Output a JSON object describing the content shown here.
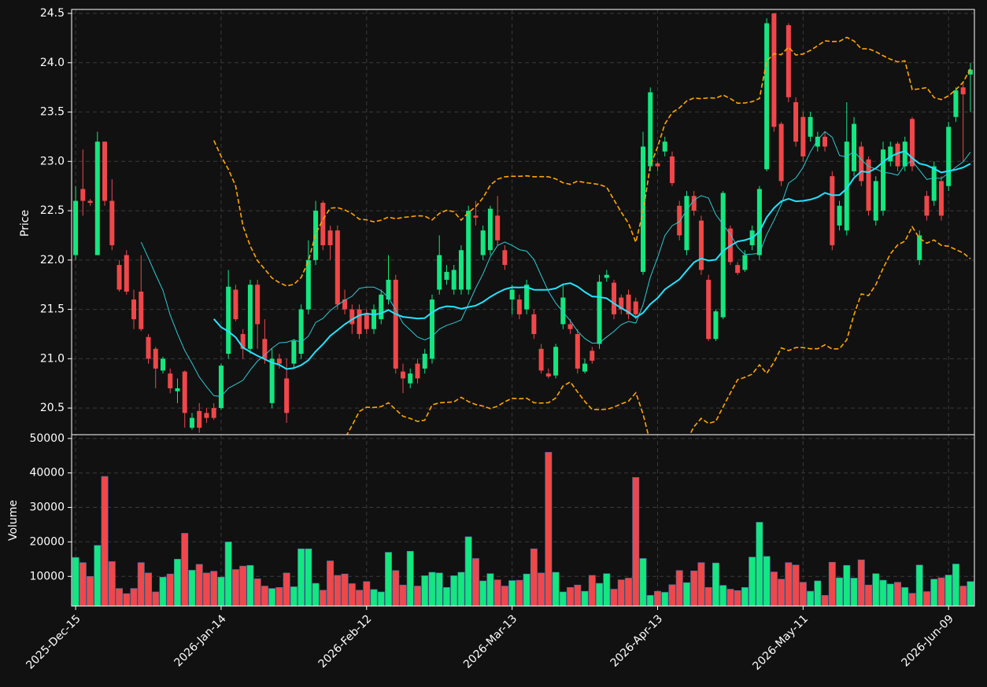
{
  "chart_data": {
    "type": "candlestick",
    "ylabel": "Price",
    "volume_label": "Volume",
    "ylim": [
      20.23,
      24.54
    ],
    "yticks": [
      20.5,
      {
        "value": 21,
        "label": "21.0"
      },
      21.5,
      {
        "value": 22,
        "label": "22.0"
      },
      22.5,
      {
        "value": 23,
        "label": "23.0"
      },
      23.5,
      {
        "value": 24,
        "label": "24.0"
      },
      24.5
    ],
    "volume_ylim": [
      1400,
      51100
    ],
    "volume_yticks": [
      10000,
      20000,
      30000,
      40000,
      50000
    ],
    "xticks": [
      {
        "value": 0,
        "label": "2025-Dec-15"
      },
      {
        "value": 20,
        "label": "2026-Jan-14"
      },
      {
        "value": 40,
        "label": "2026-Feb-12"
      },
      {
        "value": 60,
        "label": "2026-Mar-13"
      },
      {
        "value": 80,
        "label": "2026-Apr-13"
      },
      {
        "value": 100,
        "label": "2026-May-11"
      },
      {
        "value": 120,
        "label": "2026-Jun-09"
      }
    ],
    "grid": true,
    "colors": {
      "up": "#14e680",
      "down": "#f0474a"
    },
    "overlays": [
      {
        "kind": "sma",
        "window": 10,
        "color": "#2fc8d0",
        "width": 1
      },
      {
        "kind": "sma",
        "window": 20,
        "color": "#22e4ff",
        "width": 2
      },
      {
        "kind": "bollinger",
        "window": 20,
        "k": 2,
        "color": "#ffa500",
        "width": 1.6
      }
    ],
    "open": [
      22.05,
      22.72,
      22.6,
      22.05,
      23.2,
      22.6,
      21.95,
      22.05,
      21.6,
      21.68,
      21.22,
      21.1,
      20.88,
      20.85,
      20.67,
      20.87,
      20.3,
      20.47,
      20.45,
      20.5,
      20.5,
      21.05,
      21.7,
      21.25,
      21.1,
      21.75,
      21.2,
      20.55,
      21.0,
      20.8,
      20.95,
      21.05,
      21.5,
      22.0,
      22.58,
      22.3,
      22.3,
      21.6,
      21.5,
      21.5,
      21.45,
      21.3,
      21.4,
      21.6,
      21.8,
      20.87,
      20.75,
      20.95,
      20.9,
      21.0,
      21.7,
      21.8,
      21.7,
      21.7,
      21.7,
      22.45,
      22.05,
      22.1,
      22.45,
      22.1,
      21.6,
      21.6,
      21.5,
      21.45,
      21.1,
      20.85,
      20.83,
      21.35,
      21.35,
      21.25,
      20.87,
      21.08,
      21.15,
      21.82,
      21.77,
      21.62,
      21.65,
      21.58,
      21.88,
      22.95,
      22.98,
      23.1,
      23.05,
      22.55,
      22.1,
      22.65,
      22.4,
      21.8,
      21.2,
      21.42,
      22.32,
      21.95,
      21.9,
      22.15,
      22.05,
      22.92,
      24.5,
      23.38,
      24.38,
      23.6,
      23.45,
      23.25,
      23.15,
      23.25,
      22.85,
      22.35,
      22.3,
      22.9,
      23.15,
      23.02,
      22.4,
      22.5,
      23.0,
      23.18,
      22.95,
      23.43,
      22.0,
      22.65,
      22.6,
      22.8,
      22.75,
      23.45,
      23.75,
      23.88
    ],
    "high": [
      22.75,
      23.12,
      22.62,
      23.3,
      23.2,
      22.82,
      22.0,
      22.1,
      21.7,
      22.05,
      21.25,
      21.12,
      21.02,
      20.9,
      20.8,
      20.88,
      20.45,
      20.55,
      20.5,
      20.55,
      20.95,
      21.9,
      21.75,
      21.3,
      21.8,
      21.8,
      21.4,
      21.1,
      21.05,
      21.0,
      21.2,
      21.55,
      22.2,
      22.6,
      22.6,
      22.35,
      22.35,
      21.7,
      21.55,
      21.55,
      21.5,
      21.55,
      21.7,
      22.05,
      21.85,
      20.95,
      20.9,
      21.0,
      21.1,
      21.65,
      22.25,
      21.95,
      21.95,
      22.15,
      22.55,
      22.6,
      22.35,
      22.55,
      22.65,
      22.15,
      21.75,
      21.65,
      21.8,
      21.5,
      21.15,
      20.9,
      21.15,
      21.75,
      21.4,
      21.3,
      21.0,
      21.12,
      21.85,
      21.9,
      21.8,
      21.65,
      21.7,
      21.62,
      23.3,
      23.75,
      23.0,
      23.25,
      23.1,
      22.6,
      22.7,
      22.7,
      22.45,
      21.85,
      21.5,
      22.7,
      22.35,
      21.98,
      22.1,
      22.35,
      22.75,
      24.45,
      24.5,
      23.4,
      24.4,
      23.65,
      23.5,
      23.5,
      23.3,
      23.3,
      22.9,
      22.6,
      23.6,
      23.45,
      23.2,
      23.05,
      22.85,
      23.2,
      23.2,
      23.2,
      23.25,
      23.45,
      22.3,
      22.7,
      23.0,
      22.85,
      23.4,
      23.75,
      23.8,
      24.0
    ],
    "low": [
      22.0,
      22.45,
      22.55,
      22.05,
      22.55,
      22.1,
      21.68,
      21.65,
      21.3,
      21.28,
      20.95,
      20.7,
      20.85,
      20.65,
      20.55,
      20.3,
      20.28,
      20.25,
      20.35,
      20.38,
      20.48,
      21.0,
      21.38,
      21.0,
      21.05,
      21.1,
      20.95,
      20.5,
      20.9,
      20.35,
      20.9,
      21.0,
      21.45,
      21.95,
      22.1,
      22.0,
      21.5,
      21.45,
      21.25,
      21.2,
      21.25,
      21.25,
      21.35,
      21.55,
      20.85,
      20.65,
      20.7,
      20.75,
      20.85,
      20.95,
      21.65,
      21.75,
      21.65,
      21.65,
      21.65,
      22.35,
      22.0,
      22.05,
      22.15,
      21.9,
      21.45,
      21.4,
      21.45,
      21.2,
      20.85,
      20.8,
      20.8,
      21.3,
      21.25,
      20.85,
      20.85,
      20.95,
      21.1,
      21.78,
      21.4,
      21.45,
      21.4,
      21.4,
      21.85,
      22.9,
      22.9,
      23.05,
      22.75,
      22.2,
      22.05,
      22.45,
      21.85,
      21.18,
      21.18,
      21.4,
      21.95,
      21.85,
      21.88,
      22.1,
      22.0,
      22.9,
      23.3,
      22.75,
      23.6,
      23.15,
      23.0,
      23.2,
      23.1,
      23.1,
      22.1,
      22.3,
      22.25,
      22.85,
      22.75,
      22.45,
      22.35,
      22.45,
      22.95,
      22.9,
      22.9,
      22.9,
      21.95,
      22.4,
      22.55,
      22.4,
      22.7,
      23.4,
      23.0,
      23.5
    ],
    "close": [
      22.6,
      22.6,
      22.58,
      23.2,
      22.6,
      22.15,
      21.7,
      21.68,
      21.4,
      21.3,
      21.0,
      20.9,
      21.0,
      20.7,
      20.7,
      20.45,
      20.4,
      20.3,
      20.4,
      20.4,
      20.93,
      21.73,
      21.4,
      21.1,
      21.75,
      21.35,
      21.0,
      21.0,
      20.95,
      20.45,
      21.18,
      21.5,
      22.0,
      22.5,
      22.15,
      22.15,
      21.55,
      21.5,
      21.35,
      21.25,
      21.3,
      21.5,
      21.65,
      21.8,
      20.9,
      20.8,
      20.85,
      20.8,
      21.05,
      21.6,
      22.05,
      21.88,
      21.9,
      22.1,
      22.5,
      22.43,
      22.3,
      22.52,
      22.2,
      21.95,
      21.7,
      21.45,
      21.75,
      21.25,
      20.88,
      20.82,
      21.12,
      21.62,
      21.3,
      20.9,
      20.95,
      20.98,
      21.78,
      21.85,
      21.45,
      21.5,
      21.45,
      21.45,
      23.15,
      23.7,
      22.95,
      23.2,
      22.78,
      22.25,
      22.65,
      22.5,
      21.9,
      21.2,
      21.48,
      22.68,
      21.98,
      21.87,
      22.05,
      22.3,
      22.72,
      24.4,
      23.35,
      22.8,
      23.65,
      23.2,
      23.05,
      23.45,
      23.25,
      23.15,
      22.15,
      22.55,
      23.2,
      23.38,
      22.8,
      22.5,
      22.8,
      23.12,
      23.15,
      22.95,
      23.2,
      22.95,
      22.25,
      22.45,
      22.95,
      22.45,
      23.35,
      23.72,
      23.68,
      23.93
    ],
    "volume": [
      15500,
      14000,
      10000,
      19000,
      39000,
      14300,
      6500,
      5000,
      6500,
      14000,
      11000,
      5500,
      9800,
      10700,
      15000,
      22500,
      11800,
      13500,
      11000,
      11500,
      9800,
      20000,
      12000,
      13000,
      13200,
      9300,
      7200,
      6500,
      6800,
      11000,
      7000,
      18000,
      18000,
      8000,
      6000,
      14500,
      10300,
      10700,
      7900,
      6000,
      8500,
      6200,
      5500,
      17000,
      11700,
      7500,
      17300,
      7200,
      10200,
      11200,
      11000,
      6800,
      10200,
      11200,
      21500,
      15200,
      8700,
      10800,
      9000,
      7200,
      8800,
      8900,
      10700,
      18000,
      11000,
      46000,
      11200,
      5500,
      6800,
      7500,
      5700,
      10300,
      8000,
      10800,
      6300,
      9000,
      9500,
      38700,
      15200,
      4500,
      5700,
      5400,
      7600,
      11700,
      8200,
      11600,
      14000,
      6800,
      13900,
      7400,
      6300,
      5900,
      6800,
      15600,
      25700,
      15800,
      11300,
      9200,
      14000,
      13300,
      8300,
      5700,
      8700,
      4500,
      14100,
      9600,
      13200,
      9500,
      14800,
      7500,
      10800,
      8900,
      7800,
      8300,
      6800,
      5100,
      13300,
      5600,
      9200,
      9600,
      10400,
      13600,
      7200,
      8500
    ]
  }
}
